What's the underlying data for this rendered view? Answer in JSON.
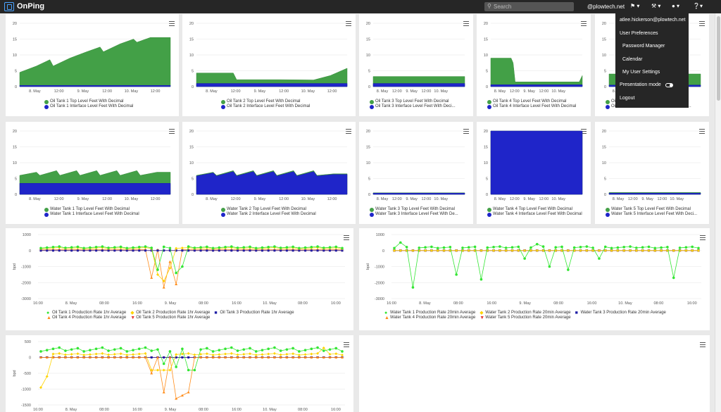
{
  "header": {
    "brand": "OnPing",
    "search_placeholder": "Search",
    "user_domain": "@plowtech.net",
    "icons": [
      "bookmark-icon",
      "wrench-icon",
      "user-icon",
      "help-icon"
    ]
  },
  "user_menu": {
    "email": "atlee.hickerson@plowtech.net",
    "items": [
      "User Preferences",
      "Password Manager",
      "Calendar",
      "My User Settings",
      "Presentation mode",
      "Logout"
    ]
  },
  "colors": {
    "green": "#43a047",
    "blue": "#1f25c9",
    "yellow": "#ffd400",
    "orange": "#ff8c1a",
    "red": "#e53935",
    "lime": "#34e634",
    "darkblue": "#1e1ea6"
  },
  "x_ticks_tank": [
    "8. May",
    "12:00",
    "9. May",
    "12:00",
    "10. May",
    "12:00"
  ],
  "x_ticks_prod": [
    "16:00",
    "8. May",
    "08:00",
    "16:00",
    "9. May",
    "08:00",
    "16:00",
    "10. May",
    "08:00",
    "16:00"
  ],
  "y_ticks_tank": [
    "20",
    "15",
    "10",
    "5",
    "0"
  ],
  "y_ticks_prod1": [
    "1000",
    "0",
    "-1000",
    "-2000",
    "-3000"
  ],
  "y_ticks_prod3": [
    "500",
    "0",
    "-500",
    "-1000",
    "-1500"
  ],
  "y_label_prod": "bpd",
  "tank_panels": {
    "oil": [
      {
        "legend": [
          "Oil Tank 1 Top Level Feet With Decimal",
          "Oil Tank 1 Interface Level Feet With Decimal"
        ]
      },
      {
        "legend": [
          "Oil Tank 2 Top Level Feet With Decimal",
          "Oil Tank 2 Interface Level Feet With Decimal"
        ]
      },
      {
        "legend": [
          "Oil Tank 3 Top Level Feet With Decimal",
          "Oil Tank 3 Interface Level Feet With Deci..."
        ]
      },
      {
        "legend": [
          "Oil Tank 4 Top Level Feet With Decimal",
          "Oil Tank 4 Interface Level Feet With Decimal"
        ]
      },
      {
        "legend": [
          "Oil Tank 5 Top Level Feet With Decimal",
          "Oil Tank 5 Interface Level Feet With Deci..."
        ]
      }
    ],
    "water": [
      {
        "legend": [
          "Water Tank 1 Top Level Feet With Decimal",
          "Water Tank 1 Interface Level Feet With Decimal"
        ]
      },
      {
        "legend": [
          "Water Tank 2 Top Level Feet With Decimal",
          "Water Tank 2 Interface Level Feet With Decimal"
        ]
      },
      {
        "legend": [
          "Water Tank 3 Top Level Feet With Decimal",
          "Water Tank 3 Interface Level Feet With De..."
        ]
      },
      {
        "legend": [
          "Water Tank 4 Top Level Feet With Decimal",
          "Water Tank 4 Interface Level Feet With Decimal"
        ]
      },
      {
        "legend": [
          "Water Tank 5 Top Level Feet With Decimal",
          "Water Tank 5 Interface Level Feet With Deci..."
        ]
      }
    ]
  },
  "prod_panels": [
    {
      "legend_row1": [
        "Oil Tank 1 Production Rate 1hr Average",
        "Oil Tank 2 Production Rate 1hr Average",
        "Oil Tank 3 Production Rate 1hr Average"
      ],
      "legend_row2": [
        "Oil Tank 4 Production Rate 1hr Average",
        "Oil Tank 5 Production Rate 1hr Average"
      ]
    },
    {
      "legend_row1": [
        "Water Tank 1 Production Rate 20min Average",
        "Water Tank 2 Production Rate 20min Average",
        "Water Tank 3 Production Rate 20min Average"
      ],
      "legend_row2": [
        "Water Tank 4 Production Rate 20min Average",
        "Water Tank 5 Production Rate 20min Average"
      ]
    },
    {}
  ],
  "chart_data": [
    {
      "type": "area",
      "x_range_hours": [
        0,
        90
      ],
      "ylim": [
        0,
        20
      ],
      "series": [
        {
          "name": "Oil Tank 1 Top Level Feet With Decimal",
          "values": [
            [
              0,
              4.5
            ],
            [
              10,
              6.5
            ],
            [
              18,
              8.5
            ],
            [
              20,
              6.5
            ],
            [
              30,
              9
            ],
            [
              40,
              11
            ],
            [
              48,
              12.5
            ],
            [
              50,
              11
            ],
            [
              60,
              13.5
            ],
            [
              68,
              15
            ],
            [
              70,
              14
            ],
            [
              78,
              15.5
            ],
            [
              90,
              15.5
            ]
          ]
        },
        {
          "name": "Oil Tank 1 Interface Level Feet With Decimal",
          "values": [
            [
              0,
              0.4
            ],
            [
              90,
              0.4
            ]
          ]
        }
      ]
    },
    {
      "type": "area",
      "x_range_hours": [
        0,
        90
      ],
      "ylim": [
        0,
        20
      ],
      "series": [
        {
          "name": "Oil Tank 2 Top Level Feet With Decimal",
          "values": [
            [
              0,
              4.3
            ],
            [
              22,
              4.3
            ],
            [
              24,
              2.2
            ],
            [
              50,
              2.2
            ],
            [
              70,
              2.1
            ],
            [
              80,
              3.5
            ],
            [
              90,
              5.8
            ]
          ]
        },
        {
          "name": "Oil Tank 2 Interface Level Feet With Decimal",
          "values": [
            [
              0,
              1
            ],
            [
              90,
              1
            ]
          ]
        }
      ]
    },
    {
      "type": "area",
      "x_range_hours": [
        0,
        90
      ],
      "ylim": [
        0,
        20
      ],
      "series": [
        {
          "name": "Oil Tank 3 Top Level Feet With Decimal",
          "values": [
            [
              0,
              3.2
            ],
            [
              90,
              3.2
            ]
          ]
        },
        {
          "name": "Oil Tank 3 Interface Level Feet With Decimal",
          "values": [
            [
              0,
              1
            ],
            [
              90,
              1
            ]
          ]
        }
      ]
    },
    {
      "type": "area",
      "x_range_hours": [
        0,
        90
      ],
      "ylim": [
        0,
        20
      ],
      "series": [
        {
          "name": "Oil Tank 4 Top Level Feet With Decimal",
          "values": [
            [
              0,
              9
            ],
            [
              20,
              9
            ],
            [
              22,
              7.5
            ],
            [
              24,
              1.5
            ],
            [
              87,
              1.5
            ],
            [
              90,
              3.5
            ]
          ]
        },
        {
          "name": "Oil Tank 4 Interface Level Feet With Decimal",
          "values": [
            [
              0,
              0.6
            ],
            [
              90,
              0.6
            ]
          ]
        }
      ]
    },
    {
      "type": "area",
      "x_range_hours": [
        0,
        90
      ],
      "ylim": [
        0,
        20
      ],
      "series": [
        {
          "name": "Oil Tank 5 Top Level Feet With Decimal",
          "values": [
            [
              0,
              4
            ],
            [
              90,
              4
            ]
          ]
        },
        {
          "name": "Oil Tank 5 Interface Level Feet With Decimal",
          "values": [
            [
              0,
              0.5
            ],
            [
              90,
              0.5
            ]
          ]
        }
      ]
    },
    {
      "type": "area",
      "x_range_hours": [
        0,
        90
      ],
      "ylim": [
        0,
        20
      ],
      "series": [
        {
          "name": "Water Tank 1 Top Level Feet With Decimal",
          "values": [
            [
              0,
              6
            ],
            [
              10,
              7
            ],
            [
              12,
              6
            ],
            [
              22,
              7.5
            ],
            [
              24,
              6
            ],
            [
              34,
              7.5
            ],
            [
              36,
              6
            ],
            [
              46,
              7.5
            ],
            [
              48,
              6
            ],
            [
              58,
              7.5
            ],
            [
              60,
              6
            ],
            [
              70,
              7.5
            ],
            [
              72,
              6
            ],
            [
              82,
              7
            ],
            [
              90,
              7
            ]
          ]
        },
        {
          "name": "Water Tank 1 Interface Level Feet With Decimal",
          "values": [
            [
              0,
              3.5
            ],
            [
              90,
              3.5
            ]
          ]
        }
      ]
    },
    {
      "type": "area",
      "x_range_hours": [
        0,
        90
      ],
      "ylim": [
        0,
        20
      ],
      "series": [
        {
          "name": "Water Tank 2 Top Level Feet With Decimal",
          "values": [
            [
              0,
              6
            ],
            [
              10,
              7
            ],
            [
              12,
              6
            ],
            [
              22,
              7.5
            ],
            [
              24,
              6
            ],
            [
              34,
              7.5
            ],
            [
              36,
              6
            ],
            [
              46,
              7.5
            ],
            [
              48,
              6
            ],
            [
              58,
              7.5
            ],
            [
              60,
              6
            ],
            [
              70,
              7.5
            ],
            [
              72,
              6
            ],
            [
              82,
              6.5
            ],
            [
              90,
              6.5
            ]
          ]
        },
        {
          "name": "Water Tank 2 Interface Level Feet With Decimal",
          "values": [
            [
              0,
              5.8
            ],
            [
              10,
              6.8
            ],
            [
              12,
              5.8
            ],
            [
              22,
              7.2
            ],
            [
              24,
              5.8
            ],
            [
              34,
              7.2
            ],
            [
              36,
              5.8
            ],
            [
              46,
              7.2
            ],
            [
              48,
              5.8
            ],
            [
              58,
              7.2
            ],
            [
              60,
              5.8
            ],
            [
              70,
              7.2
            ],
            [
              72,
              5.8
            ],
            [
              82,
              6.3
            ],
            [
              90,
              6.3
            ]
          ]
        }
      ]
    },
    {
      "type": "area",
      "x_range_hours": [
        0,
        90
      ],
      "ylim": [
        0,
        20
      ],
      "series": [
        {
          "name": "Water Tank 3 Top Level Feet With Decimal",
          "values": [
            [
              0,
              0.5
            ],
            [
              90,
              0.5
            ]
          ]
        },
        {
          "name": "Water Tank 3 Interface Level Feet With De...",
          "values": [
            [
              0,
              0.4
            ],
            [
              90,
              0.4
            ]
          ]
        }
      ]
    },
    {
      "type": "area",
      "x_range_hours": [
        0,
        90
      ],
      "ylim": [
        0,
        20
      ],
      "series": [
        {
          "name": "Water Tank 4 Top Level Feet With Decimal",
          "values": [
            [
              0,
              20
            ],
            [
              90,
              20
            ]
          ]
        },
        {
          "name": "Water Tank 4 Interface Level Feet With Decimal",
          "values": [
            [
              0,
              20
            ],
            [
              90,
              20
            ]
          ]
        }
      ]
    },
    {
      "type": "area",
      "x_range_hours": [
        0,
        90
      ],
      "ylim": [
        0,
        20
      ],
      "series": [
        {
          "name": "Water Tank 5 Top Level Feet With Decimal",
          "values": [
            [
              0,
              0.6
            ],
            [
              90,
              0.6
            ]
          ]
        },
        {
          "name": "Water Tank 5 Interface Level Feet With Deci...",
          "values": [
            [
              0,
              0.4
            ],
            [
              90,
              0.4
            ]
          ]
        }
      ]
    },
    {
      "type": "line",
      "ylim": [
        -3000,
        1000
      ],
      "x_count": 50,
      "series": [
        {
          "name": "Oil Tank 1 Production Rate 1hr Average",
          "marker": "circle",
          "base": 200,
          "dips": [
            [
              19,
              -1200
            ],
            [
              22,
              -1400
            ],
            [
              23,
              -1000
            ]
          ]
        },
        {
          "name": "Oil Tank 2 Production Rate 1hr Average",
          "marker": "diamond",
          "base": 150,
          "dips": [
            [
              19,
              -1500
            ],
            [
              20,
              -1900
            ],
            [
              21,
              -1100
            ]
          ]
        },
        {
          "name": "Oil Tank 3 Production Rate 1hr Average",
          "marker": "square",
          "base": 0,
          "dips": []
        },
        {
          "name": "Oil Tank 4 Production Rate 1hr Average",
          "marker": "triangle",
          "base": 50,
          "dips": [
            [
              18,
              -1700
            ],
            [
              20,
              -2300
            ],
            [
              21,
              -700
            ],
            [
              22,
              -2100
            ]
          ]
        },
        {
          "name": "Oil Tank 5 Production Rate 1hr Average",
          "marker": "triangle-down",
          "base": 0,
          "dips": []
        }
      ]
    },
    {
      "type": "line",
      "ylim": [
        -3000,
        1000
      ],
      "x_count": 50,
      "series": [
        {
          "name": "Water Tank 1 Production Rate 20min Average",
          "marker": "circle",
          "base": 200,
          "dips": [
            [
              1,
              500
            ],
            [
              3,
              -2300
            ],
            [
              10,
              -1500
            ],
            [
              14,
              -1800
            ],
            [
              21,
              -500
            ],
            [
              23,
              400
            ],
            [
              25,
              -1000
            ],
            [
              28,
              -1200
            ],
            [
              33,
              -500
            ],
            [
              45,
              -1700
            ]
          ]
        },
        {
          "name": "Water Tank 2 Production Rate 20min Average",
          "marker": "diamond",
          "base": 0,
          "dips": []
        },
        {
          "name": "Water Tank 3 Production Rate 20min Average",
          "marker": "square",
          "base": 0,
          "dips": []
        },
        {
          "name": "Water Tank 4 Production Rate 20min Average",
          "marker": "triangle",
          "base": 0,
          "dips": []
        },
        {
          "name": "Water Tank 5 Production Rate 20min Average",
          "marker": "triangle-down",
          "base": 0,
          "dips": []
        }
      ]
    },
    {
      "type": "line",
      "ylim": [
        -1500,
        500
      ],
      "x_count": 50,
      "series": [
        {
          "marker": "circle",
          "base": 250,
          "dips": [
            [
              20,
              -200
            ],
            [
              22,
              -300
            ],
            [
              24,
              -400
            ],
            [
              25,
              -400
            ]
          ]
        },
        {
          "marker": "diamond",
          "base": 100,
          "dips": [
            [
              0,
              -950
            ],
            [
              1,
              -600
            ],
            [
              18,
              -400
            ],
            [
              19,
              -400
            ],
            [
              20,
              -400
            ],
            [
              21,
              -400
            ],
            [
              46,
              300
            ]
          ]
        },
        {
          "marker": "triangle",
          "base": 0,
          "dips": [
            [
              18,
              -500
            ],
            [
              20,
              -1100
            ],
            [
              22,
              -1300
            ],
            [
              23,
              -1200
            ],
            [
              24,
              -1100
            ]
          ]
        },
        {
          "marker": "square",
          "base": 0,
          "dips": []
        },
        {
          "marker": "triangle-down",
          "base": 0,
          "dips": []
        }
      ]
    }
  ]
}
